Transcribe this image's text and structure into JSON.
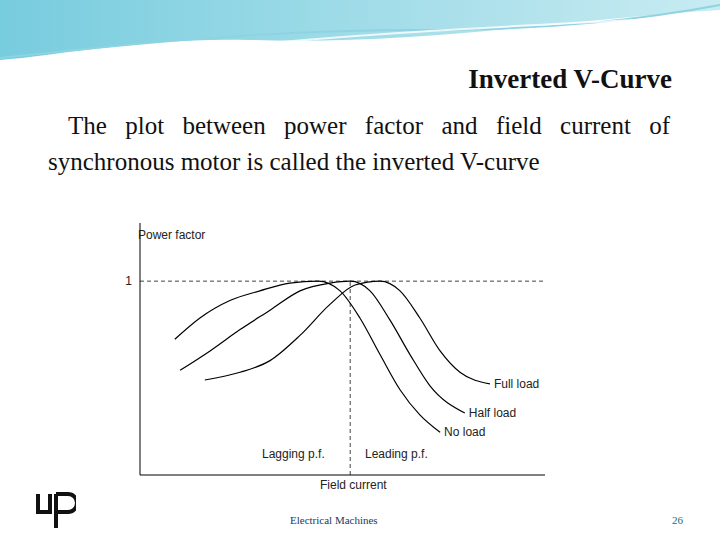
{
  "slide": {
    "title": "Inverted V-Curve",
    "text": "The plot between power factor and field current of synchronous motor is called the inverted V-curve",
    "footer": "Electrical Machines",
    "page": "26"
  },
  "chart_data": {
    "type": "line",
    "x_label": "Field current",
    "y_label": "Power factor",
    "xlim": [
      0,
      10
    ],
    "xticks": [],
    "ylim": [
      0,
      1.3
    ],
    "yticks": [
      1
    ],
    "tick_labels": "y",
    "grid": false,
    "reference_y": 1,
    "reference_x": 5.19,
    "annotations": [
      "Lagging p.f.",
      "Leading p.f."
    ],
    "series": [
      {
        "name": "Full load",
        "color": "#000000",
        "x": [
          1.6,
          2.47,
          3.21,
          3.95,
          4.69,
          5.31,
          5.93,
          6.42,
          6.91,
          7.41,
          7.9,
          8.64
        ],
        "values": [
          0.49,
          0.53,
          0.59,
          0.72,
          0.88,
          0.98,
          1.0,
          0.95,
          0.81,
          0.64,
          0.53,
          0.47
        ]
      },
      {
        "name": "Half load",
        "color": "#000000",
        "x": [
          0.99,
          1.73,
          2.47,
          3.21,
          3.95,
          4.69,
          5.19,
          5.68,
          6.17,
          6.67,
          7.16,
          8.02
        ],
        "values": [
          0.54,
          0.64,
          0.75,
          0.85,
          0.95,
          0.99,
          1.0,
          0.95,
          0.8,
          0.62,
          0.46,
          0.32
        ]
      },
      {
        "name": "No load",
        "color": "#000000",
        "x": [
          0.86,
          1.48,
          2.22,
          2.96,
          3.7,
          4.4,
          4.94,
          5.43,
          5.93,
          6.42,
          6.91,
          7.41
        ],
        "values": [
          0.7,
          0.81,
          0.9,
          0.95,
          0.99,
          1.0,
          0.95,
          0.81,
          0.62,
          0.44,
          0.31,
          0.22
        ]
      }
    ]
  }
}
